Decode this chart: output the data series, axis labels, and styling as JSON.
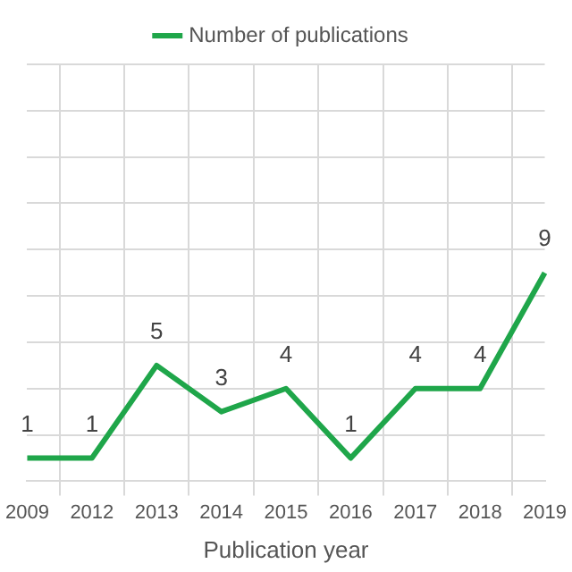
{
  "chart_data": {
    "type": "line",
    "xlabel": "Publication year",
    "categories": [
      "2009",
      "2012",
      "2013",
      "2014",
      "2015",
      "2016",
      "2017",
      "2018",
      "2019"
    ],
    "series": [
      {
        "name": "Number of publications",
        "color": "#1fa64a",
        "values": [
          1,
          1,
          5,
          3,
          4,
          1,
          4,
          4,
          9
        ]
      }
    ],
    "ylim": [
      0,
      18
    ],
    "yticks": [
      {
        "value": 0,
        "label": null
      },
      {
        "value": 2,
        "label": null
      },
      {
        "value": 4,
        "label": null
      },
      {
        "value": 6,
        "label": null
      },
      {
        "value": 8,
        "label": null
      },
      {
        "value": 10,
        "label": null
      },
      {
        "value": 12,
        "label": null
      },
      {
        "value": 14,
        "label": null
      },
      {
        "value": 16,
        "label": null
      },
      {
        "value": 18,
        "label": null
      }
    ],
    "tick_labels": "x",
    "grid": true,
    "legend": "top",
    "data_labels": true,
    "marker": "none",
    "line_style": "solid"
  }
}
